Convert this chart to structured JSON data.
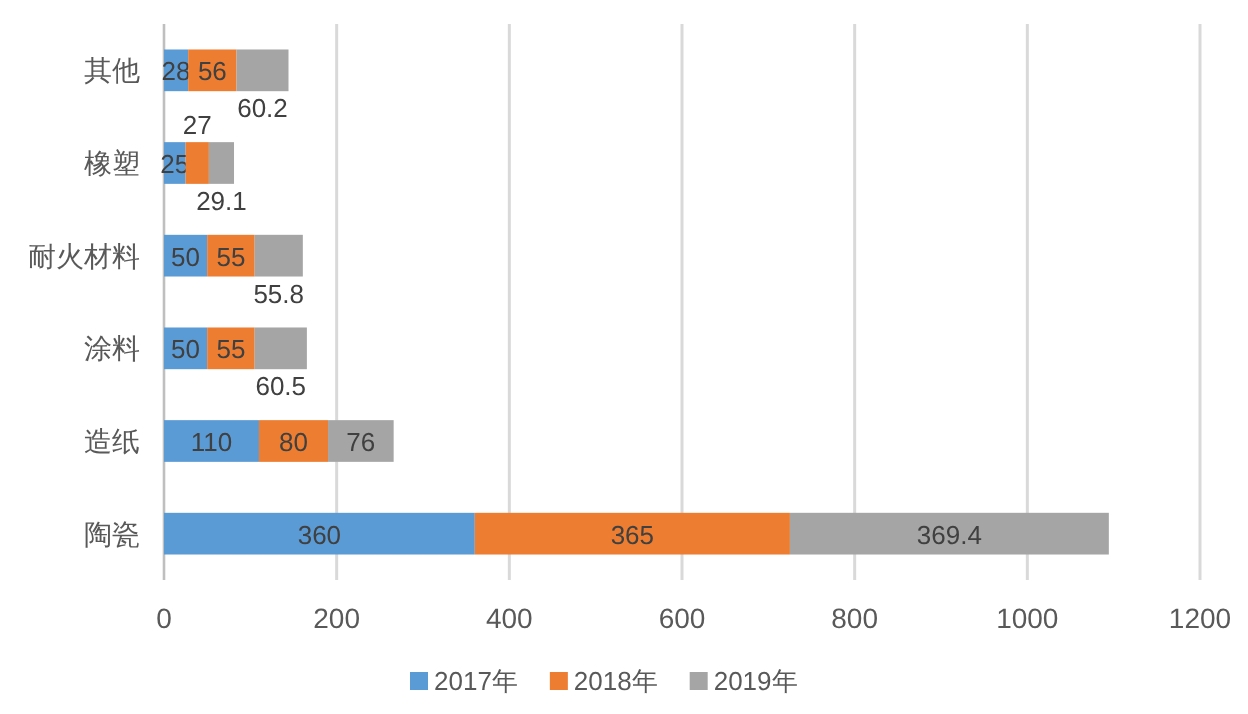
{
  "chart_data": {
    "type": "bar",
    "orientation": "horizontal",
    "stacked": true,
    "categories": [
      "其他",
      "橡塑",
      "耐火材料",
      "涂料",
      "造纸",
      "陶瓷"
    ],
    "series": [
      {
        "name": "2017年",
        "color": "#5b9bd5",
        "values": [
          28,
          25,
          50,
          50,
          110,
          360
        ]
      },
      {
        "name": "2018年",
        "color": "#ed7d31",
        "values": [
          56,
          27,
          55,
          55,
          80,
          365
        ]
      },
      {
        "name": "2019年",
        "color": "#a5a5a5",
        "values": [
          60.2,
          29.1,
          55.8,
          60.5,
          76,
          369.4
        ]
      }
    ],
    "xlim": [
      0,
      1200
    ],
    "xticks": [
      0,
      200,
      400,
      600,
      800,
      1000,
      1200
    ],
    "grid": "x",
    "legend": "bottom",
    "data_labels": true
  }
}
